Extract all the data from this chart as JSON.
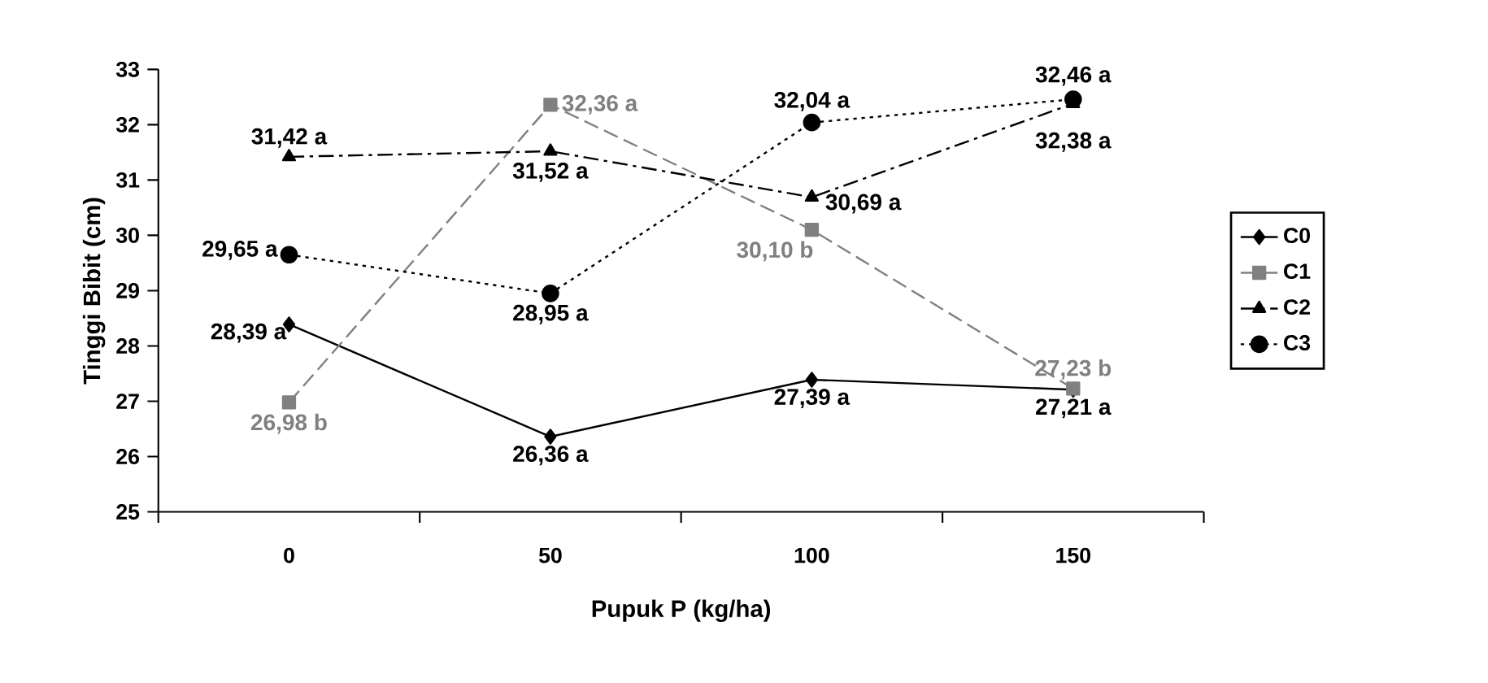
{
  "chart_data": {
    "type": "line",
    "xlabel": "Pupuk P (kg/ha)",
    "ylabel": "Tinggi Bibit (cm)",
    "categories": [
      "0",
      "50",
      "100",
      "150"
    ],
    "ylim": [
      25,
      33
    ],
    "yticks": [
      25,
      26,
      27,
      28,
      29,
      30,
      31,
      32,
      33
    ],
    "grid": false,
    "legend": "right",
    "series": [
      {
        "name": "C0",
        "color": "#000000",
        "marker": "diamond",
        "line_style": "solid",
        "values": [
          28.39,
          26.36,
          27.39,
          27.21
        ],
        "value_labels": [
          "28,39 a",
          "26,36 a",
          "27,39 a",
          "27,21 a"
        ]
      },
      {
        "name": "C1",
        "color": "#808080",
        "marker": "square",
        "line_style": "dashed",
        "values": [
          26.98,
          32.36,
          30.1,
          27.23
        ],
        "value_labels": [
          "26,98 b",
          "32,36 a",
          "30,10 b",
          "27,23 b"
        ]
      },
      {
        "name": "C2",
        "color": "#000000",
        "marker": "triangle",
        "line_style": "dashdot",
        "values": [
          31.42,
          31.52,
          30.69,
          32.38
        ],
        "value_labels": [
          "31,42 a",
          "31,52 a",
          "30,69 a",
          "32,38 a"
        ]
      },
      {
        "name": "C3",
        "color": "#000000",
        "marker": "circle",
        "line_style": "dotted",
        "values": [
          29.65,
          28.95,
          32.04,
          32.46
        ],
        "value_labels": [
          "29,65 a",
          "28,95 a",
          "32,04 a",
          "32,46 a"
        ]
      }
    ]
  }
}
